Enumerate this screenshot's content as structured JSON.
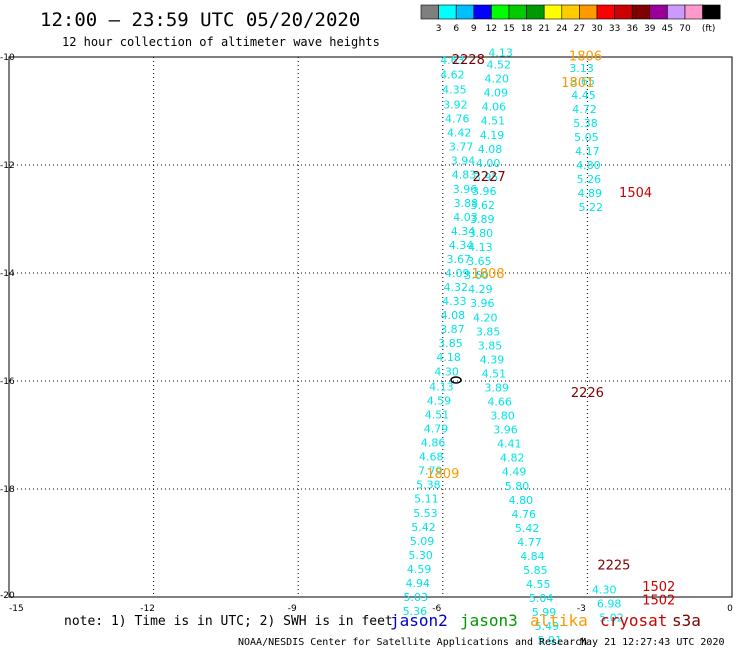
{
  "title": "12:00 – 23:59 UTC 05/20/2020",
  "subtitle": "12 hour collection of altimeter wave heights",
  "colorbar": {
    "labels": [
      "3",
      "6",
      "9",
      "12",
      "15",
      "18",
      "21",
      "24",
      "27",
      "30",
      "33",
      "36",
      "39",
      "45",
      "70"
    ],
    "unit": "(ft)",
    "colors": [
      "#7f7f7f",
      "#00ffff",
      "#00bfff",
      "#0000ff",
      "#00ff00",
      "#00cc00",
      "#009900",
      "#ffff00",
      "#ffcc00",
      "#ff9900",
      "#ff0000",
      "#cc0000",
      "#800000",
      "#990099",
      "#cc99ff",
      "#ff99cc",
      "#000000"
    ]
  },
  "note": "note: 1) Time is in UTC; 2) SWH is in feet",
  "legend": [
    {
      "name": "jason2",
      "color": "#0000cc"
    },
    {
      "name": "jason3",
      "color": "#009900"
    },
    {
      "name": "altika",
      "color": "#ff9900"
    },
    {
      "name": "cryosat",
      "color": "#cc0000"
    },
    {
      "name": "s3a",
      "color": "#800000"
    }
  ],
  "footer_left": "NOAA/NESDIS Center for Satellite Applications and Research",
  "footer_right": "May 21 12:27:43 UTC 2020",
  "chart_data": {
    "type": "scatter",
    "title": "12:00 – 23:59 UTC 05/20/2020",
    "subtitle": "12 hour collection of altimeter wave heights",
    "xlim": [
      -15,
      0
    ],
    "ylim": [
      -20,
      -10
    ],
    "xticks": [
      -15,
      -12,
      -9,
      -6,
      -3,
      0
    ],
    "yticks": [
      -10,
      -12,
      -14,
      -16,
      -18,
      -20
    ],
    "grid": true,
    "legend_position": "bottom",
    "time_labels": [
      {
        "x": -5.47,
        "y": -10.04,
        "text": "2228",
        "color": "#800000"
      },
      {
        "x": -3.04,
        "y": -9.97,
        "text": "1806",
        "color": "#ff9900"
      },
      {
        "x": -3.2,
        "y": -10.46,
        "text": "1801",
        "color": "#ff9900"
      },
      {
        "x": -5.04,
        "y": -12.2,
        "text": "2227",
        "color": "#800000"
      },
      {
        "x": -2.0,
        "y": -12.5,
        "text": "1504",
        "color": "#cc0000"
      },
      {
        "x": -5.06,
        "y": -14.0,
        "text": "1808",
        "color": "#ff9900"
      },
      {
        "x": -3.0,
        "y": -16.2,
        "text": "2226",
        "color": "#800000"
      },
      {
        "x": -6.0,
        "y": -17.7,
        "text": "1809",
        "color": "#ff9900"
      },
      {
        "x": -2.45,
        "y": -19.4,
        "text": "2225",
        "color": "#800000"
      },
      {
        "x": -1.52,
        "y": -19.8,
        "text": "1502",
        "color": "#cc0000"
      },
      {
        "x": -1.52,
        "y": -20.05,
        "text": "1502",
        "color": "#cc0000"
      }
    ],
    "series": [
      {
        "name": "s3a",
        "color": "#00e5e5",
        "points": [
          [
            -5.8,
            -10.06,
            "4.63"
          ],
          [
            -5.8,
            -10.32,
            "4.62"
          ],
          [
            -5.76,
            -10.6,
            "4.35"
          ],
          [
            -5.74,
            -10.88,
            "3.92"
          ],
          [
            -5.7,
            -11.14,
            "4.76"
          ],
          [
            -5.66,
            -11.4,
            "4.42"
          ],
          [
            -5.62,
            -11.66,
            "3.77"
          ],
          [
            -5.58,
            -11.92,
            "3.94"
          ],
          [
            -5.56,
            -12.18,
            "4.83"
          ],
          [
            -5.54,
            -12.44,
            "3.96"
          ],
          [
            -5.52,
            -12.7,
            "3.88"
          ],
          [
            -5.53,
            -12.96,
            "4.03"
          ],
          [
            -5.58,
            -13.22,
            "4.34"
          ],
          [
            -5.62,
            -13.48,
            "4.34"
          ],
          [
            -5.67,
            -13.74,
            "3.67"
          ],
          [
            -5.7,
            -14.0,
            "4.09"
          ],
          [
            -5.73,
            -14.26,
            "4.32"
          ],
          [
            -5.76,
            -14.52,
            "4.33"
          ],
          [
            -5.79,
            -14.78,
            "4.08"
          ],
          [
            -5.8,
            -15.04,
            "3.87"
          ],
          [
            -5.84,
            -15.3,
            "3.85"
          ],
          [
            -5.88,
            -15.56,
            "4.18"
          ],
          [
            -5.92,
            -15.82,
            "4.30"
          ],
          [
            -6.03,
            -16.1,
            "4.13"
          ],
          [
            -6.08,
            -16.36,
            "4.59"
          ],
          [
            -6.12,
            -16.62,
            "4.51"
          ],
          [
            -6.14,
            -16.88,
            "4.79"
          ],
          [
            -6.2,
            -17.14,
            "4.86"
          ],
          [
            -6.24,
            -17.4,
            "4.68"
          ],
          [
            -6.26,
            -17.66,
            "7.79"
          ],
          [
            -6.3,
            -17.92,
            "5.38"
          ],
          [
            -6.34,
            -18.18,
            "5.11"
          ],
          [
            -6.36,
            -18.44,
            "5.53"
          ],
          [
            -6.4,
            -18.7,
            "5.42"
          ],
          [
            -6.43,
            -18.96,
            "5.09"
          ],
          [
            -6.46,
            -19.22,
            "5.30"
          ],
          [
            -6.49,
            -19.48,
            "4.59"
          ],
          [
            -6.52,
            -19.74,
            "4.94"
          ],
          [
            -6.56,
            -20.0,
            "5.03"
          ],
          [
            -6.58,
            -20.26,
            "5.36"
          ]
        ]
      },
      {
        "name": "s3a",
        "color": "#00e5e5",
        "points": [
          [
            -4.8,
            -9.92,
            "4.13"
          ],
          [
            -4.84,
            -10.14,
            "4.52"
          ],
          [
            -4.88,
            -10.4,
            "4.20"
          ],
          [
            -4.9,
            -10.66,
            "4.09"
          ],
          [
            -4.94,
            -10.92,
            "4.06"
          ],
          [
            -4.96,
            -11.18,
            "4.51"
          ],
          [
            -4.98,
            -11.44,
            "4.19"
          ],
          [
            -5.02,
            -11.7,
            "4.08"
          ],
          [
            -5.06,
            -11.96,
            "4.00"
          ],
          [
            -5.1,
            -12.22,
            "3.95"
          ],
          [
            -5.14,
            -12.48,
            "3.96"
          ],
          [
            -5.17,
            -12.74,
            "3.62"
          ],
          [
            -5.18,
            -13.0,
            "3.89"
          ],
          [
            -5.21,
            -13.26,
            "3.80"
          ],
          [
            -5.22,
            -13.52,
            "4.13"
          ],
          [
            -5.24,
            -13.78,
            "3.65"
          ],
          [
            -5.3,
            -14.04,
            "3.60"
          ],
          [
            -5.22,
            -14.3,
            "4.29"
          ],
          [
            -5.18,
            -14.56,
            "3.96"
          ],
          [
            -5.12,
            -14.82,
            "4.20"
          ],
          [
            -5.06,
            -15.08,
            "3.85"
          ],
          [
            -5.02,
            -15.34,
            "3.85"
          ],
          [
            -4.98,
            -15.6,
            "4.39"
          ],
          [
            -4.94,
            -15.86,
            "4.51"
          ],
          [
            -4.88,
            -16.12,
            "3.89"
          ],
          [
            -4.82,
            -16.38,
            "4.66"
          ],
          [
            -4.76,
            -16.64,
            "3.80"
          ],
          [
            -4.7,
            -16.9,
            "3.96"
          ],
          [
            -4.62,
            -17.16,
            "4.41"
          ],
          [
            -4.56,
            -17.42,
            "4.82"
          ],
          [
            -4.52,
            -17.68,
            "4.49"
          ],
          [
            -4.46,
            -17.94,
            "5.80"
          ],
          [
            -4.38,
            -18.2,
            "4.80"
          ],
          [
            -4.32,
            -18.46,
            "4.76"
          ],
          [
            -4.25,
            -18.72,
            "5.42"
          ],
          [
            -4.2,
            -18.98,
            "4.77"
          ],
          [
            -4.14,
            -19.24,
            "4.84"
          ],
          [
            -4.08,
            -19.5,
            "5.85"
          ],
          [
            -4.02,
            -19.76,
            "4.55"
          ],
          [
            -3.96,
            -20.02,
            "5.04"
          ],
          [
            -3.9,
            -20.28,
            "5.99"
          ],
          [
            -3.84,
            -20.54,
            "5.49"
          ],
          [
            -3.78,
            -20.8,
            "5.91"
          ]
        ]
      },
      {
        "name": "altika",
        "color": "#00e5e5",
        "points": [
          [
            -3.12,
            -10.2,
            "3.13"
          ],
          [
            -3.1,
            -10.44,
            "3.65"
          ],
          [
            -3.08,
            -10.7,
            "4.45"
          ],
          [
            -3.06,
            -10.96,
            "4.72"
          ],
          [
            -3.04,
            -11.22,
            "5.38"
          ],
          [
            -3.02,
            -11.48,
            "5.05"
          ],
          [
            -3.0,
            -11.74,
            "4.17"
          ],
          [
            -2.98,
            -12.0,
            "4.80"
          ],
          [
            -2.97,
            -12.26,
            "5.26"
          ],
          [
            -2.95,
            -12.52,
            "4.89"
          ],
          [
            -2.93,
            -12.78,
            "5.22"
          ]
        ]
      },
      {
        "name": "cryosat",
        "color": "#00e5e5",
        "points": [
          [
            -2.65,
            -19.86,
            "4.30"
          ],
          [
            -2.55,
            -20.12,
            "6.98"
          ],
          [
            -2.5,
            -20.38,
            "5.02"
          ]
        ]
      }
    ]
  }
}
